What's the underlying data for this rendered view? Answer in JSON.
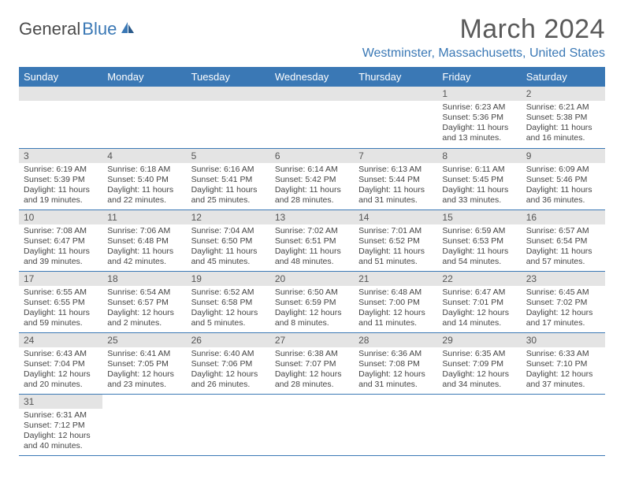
{
  "logo": {
    "text1": "General",
    "text2": "Blue"
  },
  "title": "March 2024",
  "location": "Westminster, Massachusetts, United States",
  "day_headers": [
    "Sunday",
    "Monday",
    "Tuesday",
    "Wednesday",
    "Thursday",
    "Friday",
    "Saturday"
  ],
  "colors": {
    "header_bg": "#3a78b5",
    "header_text": "#ffffff",
    "daynum_bg": "#e4e4e4",
    "divider": "#3a78b5",
    "logo_gray": "#4a4a4a",
    "logo_blue": "#3a78b5"
  },
  "weeks": [
    [
      null,
      null,
      null,
      null,
      null,
      {
        "n": "1",
        "sr": "Sunrise: 6:23 AM",
        "ss": "Sunset: 5:36 PM",
        "dl": "Daylight: 11 hours and 13 minutes."
      },
      {
        "n": "2",
        "sr": "Sunrise: 6:21 AM",
        "ss": "Sunset: 5:38 PM",
        "dl": "Daylight: 11 hours and 16 minutes."
      }
    ],
    [
      {
        "n": "3",
        "sr": "Sunrise: 6:19 AM",
        "ss": "Sunset: 5:39 PM",
        "dl": "Daylight: 11 hours and 19 minutes."
      },
      {
        "n": "4",
        "sr": "Sunrise: 6:18 AM",
        "ss": "Sunset: 5:40 PM",
        "dl": "Daylight: 11 hours and 22 minutes."
      },
      {
        "n": "5",
        "sr": "Sunrise: 6:16 AM",
        "ss": "Sunset: 5:41 PM",
        "dl": "Daylight: 11 hours and 25 minutes."
      },
      {
        "n": "6",
        "sr": "Sunrise: 6:14 AM",
        "ss": "Sunset: 5:42 PM",
        "dl": "Daylight: 11 hours and 28 minutes."
      },
      {
        "n": "7",
        "sr": "Sunrise: 6:13 AM",
        "ss": "Sunset: 5:44 PM",
        "dl": "Daylight: 11 hours and 31 minutes."
      },
      {
        "n": "8",
        "sr": "Sunrise: 6:11 AM",
        "ss": "Sunset: 5:45 PM",
        "dl": "Daylight: 11 hours and 33 minutes."
      },
      {
        "n": "9",
        "sr": "Sunrise: 6:09 AM",
        "ss": "Sunset: 5:46 PM",
        "dl": "Daylight: 11 hours and 36 minutes."
      }
    ],
    [
      {
        "n": "10",
        "sr": "Sunrise: 7:08 AM",
        "ss": "Sunset: 6:47 PM",
        "dl": "Daylight: 11 hours and 39 minutes."
      },
      {
        "n": "11",
        "sr": "Sunrise: 7:06 AM",
        "ss": "Sunset: 6:48 PM",
        "dl": "Daylight: 11 hours and 42 minutes."
      },
      {
        "n": "12",
        "sr": "Sunrise: 7:04 AM",
        "ss": "Sunset: 6:50 PM",
        "dl": "Daylight: 11 hours and 45 minutes."
      },
      {
        "n": "13",
        "sr": "Sunrise: 7:02 AM",
        "ss": "Sunset: 6:51 PM",
        "dl": "Daylight: 11 hours and 48 minutes."
      },
      {
        "n": "14",
        "sr": "Sunrise: 7:01 AM",
        "ss": "Sunset: 6:52 PM",
        "dl": "Daylight: 11 hours and 51 minutes."
      },
      {
        "n": "15",
        "sr": "Sunrise: 6:59 AM",
        "ss": "Sunset: 6:53 PM",
        "dl": "Daylight: 11 hours and 54 minutes."
      },
      {
        "n": "16",
        "sr": "Sunrise: 6:57 AM",
        "ss": "Sunset: 6:54 PM",
        "dl": "Daylight: 11 hours and 57 minutes."
      }
    ],
    [
      {
        "n": "17",
        "sr": "Sunrise: 6:55 AM",
        "ss": "Sunset: 6:55 PM",
        "dl": "Daylight: 11 hours and 59 minutes."
      },
      {
        "n": "18",
        "sr": "Sunrise: 6:54 AM",
        "ss": "Sunset: 6:57 PM",
        "dl": "Daylight: 12 hours and 2 minutes."
      },
      {
        "n": "19",
        "sr": "Sunrise: 6:52 AM",
        "ss": "Sunset: 6:58 PM",
        "dl": "Daylight: 12 hours and 5 minutes."
      },
      {
        "n": "20",
        "sr": "Sunrise: 6:50 AM",
        "ss": "Sunset: 6:59 PM",
        "dl": "Daylight: 12 hours and 8 minutes."
      },
      {
        "n": "21",
        "sr": "Sunrise: 6:48 AM",
        "ss": "Sunset: 7:00 PM",
        "dl": "Daylight: 12 hours and 11 minutes."
      },
      {
        "n": "22",
        "sr": "Sunrise: 6:47 AM",
        "ss": "Sunset: 7:01 PM",
        "dl": "Daylight: 12 hours and 14 minutes."
      },
      {
        "n": "23",
        "sr": "Sunrise: 6:45 AM",
        "ss": "Sunset: 7:02 PM",
        "dl": "Daylight: 12 hours and 17 minutes."
      }
    ],
    [
      {
        "n": "24",
        "sr": "Sunrise: 6:43 AM",
        "ss": "Sunset: 7:04 PM",
        "dl": "Daylight: 12 hours and 20 minutes."
      },
      {
        "n": "25",
        "sr": "Sunrise: 6:41 AM",
        "ss": "Sunset: 7:05 PM",
        "dl": "Daylight: 12 hours and 23 minutes."
      },
      {
        "n": "26",
        "sr": "Sunrise: 6:40 AM",
        "ss": "Sunset: 7:06 PM",
        "dl": "Daylight: 12 hours and 26 minutes."
      },
      {
        "n": "27",
        "sr": "Sunrise: 6:38 AM",
        "ss": "Sunset: 7:07 PM",
        "dl": "Daylight: 12 hours and 28 minutes."
      },
      {
        "n": "28",
        "sr": "Sunrise: 6:36 AM",
        "ss": "Sunset: 7:08 PM",
        "dl": "Daylight: 12 hours and 31 minutes."
      },
      {
        "n": "29",
        "sr": "Sunrise: 6:35 AM",
        "ss": "Sunset: 7:09 PM",
        "dl": "Daylight: 12 hours and 34 minutes."
      },
      {
        "n": "30",
        "sr": "Sunrise: 6:33 AM",
        "ss": "Sunset: 7:10 PM",
        "dl": "Daylight: 12 hours and 37 minutes."
      }
    ],
    [
      {
        "n": "31",
        "sr": "Sunrise: 6:31 AM",
        "ss": "Sunset: 7:12 PM",
        "dl": "Daylight: 12 hours and 40 minutes."
      },
      null,
      null,
      null,
      null,
      null,
      null
    ]
  ]
}
